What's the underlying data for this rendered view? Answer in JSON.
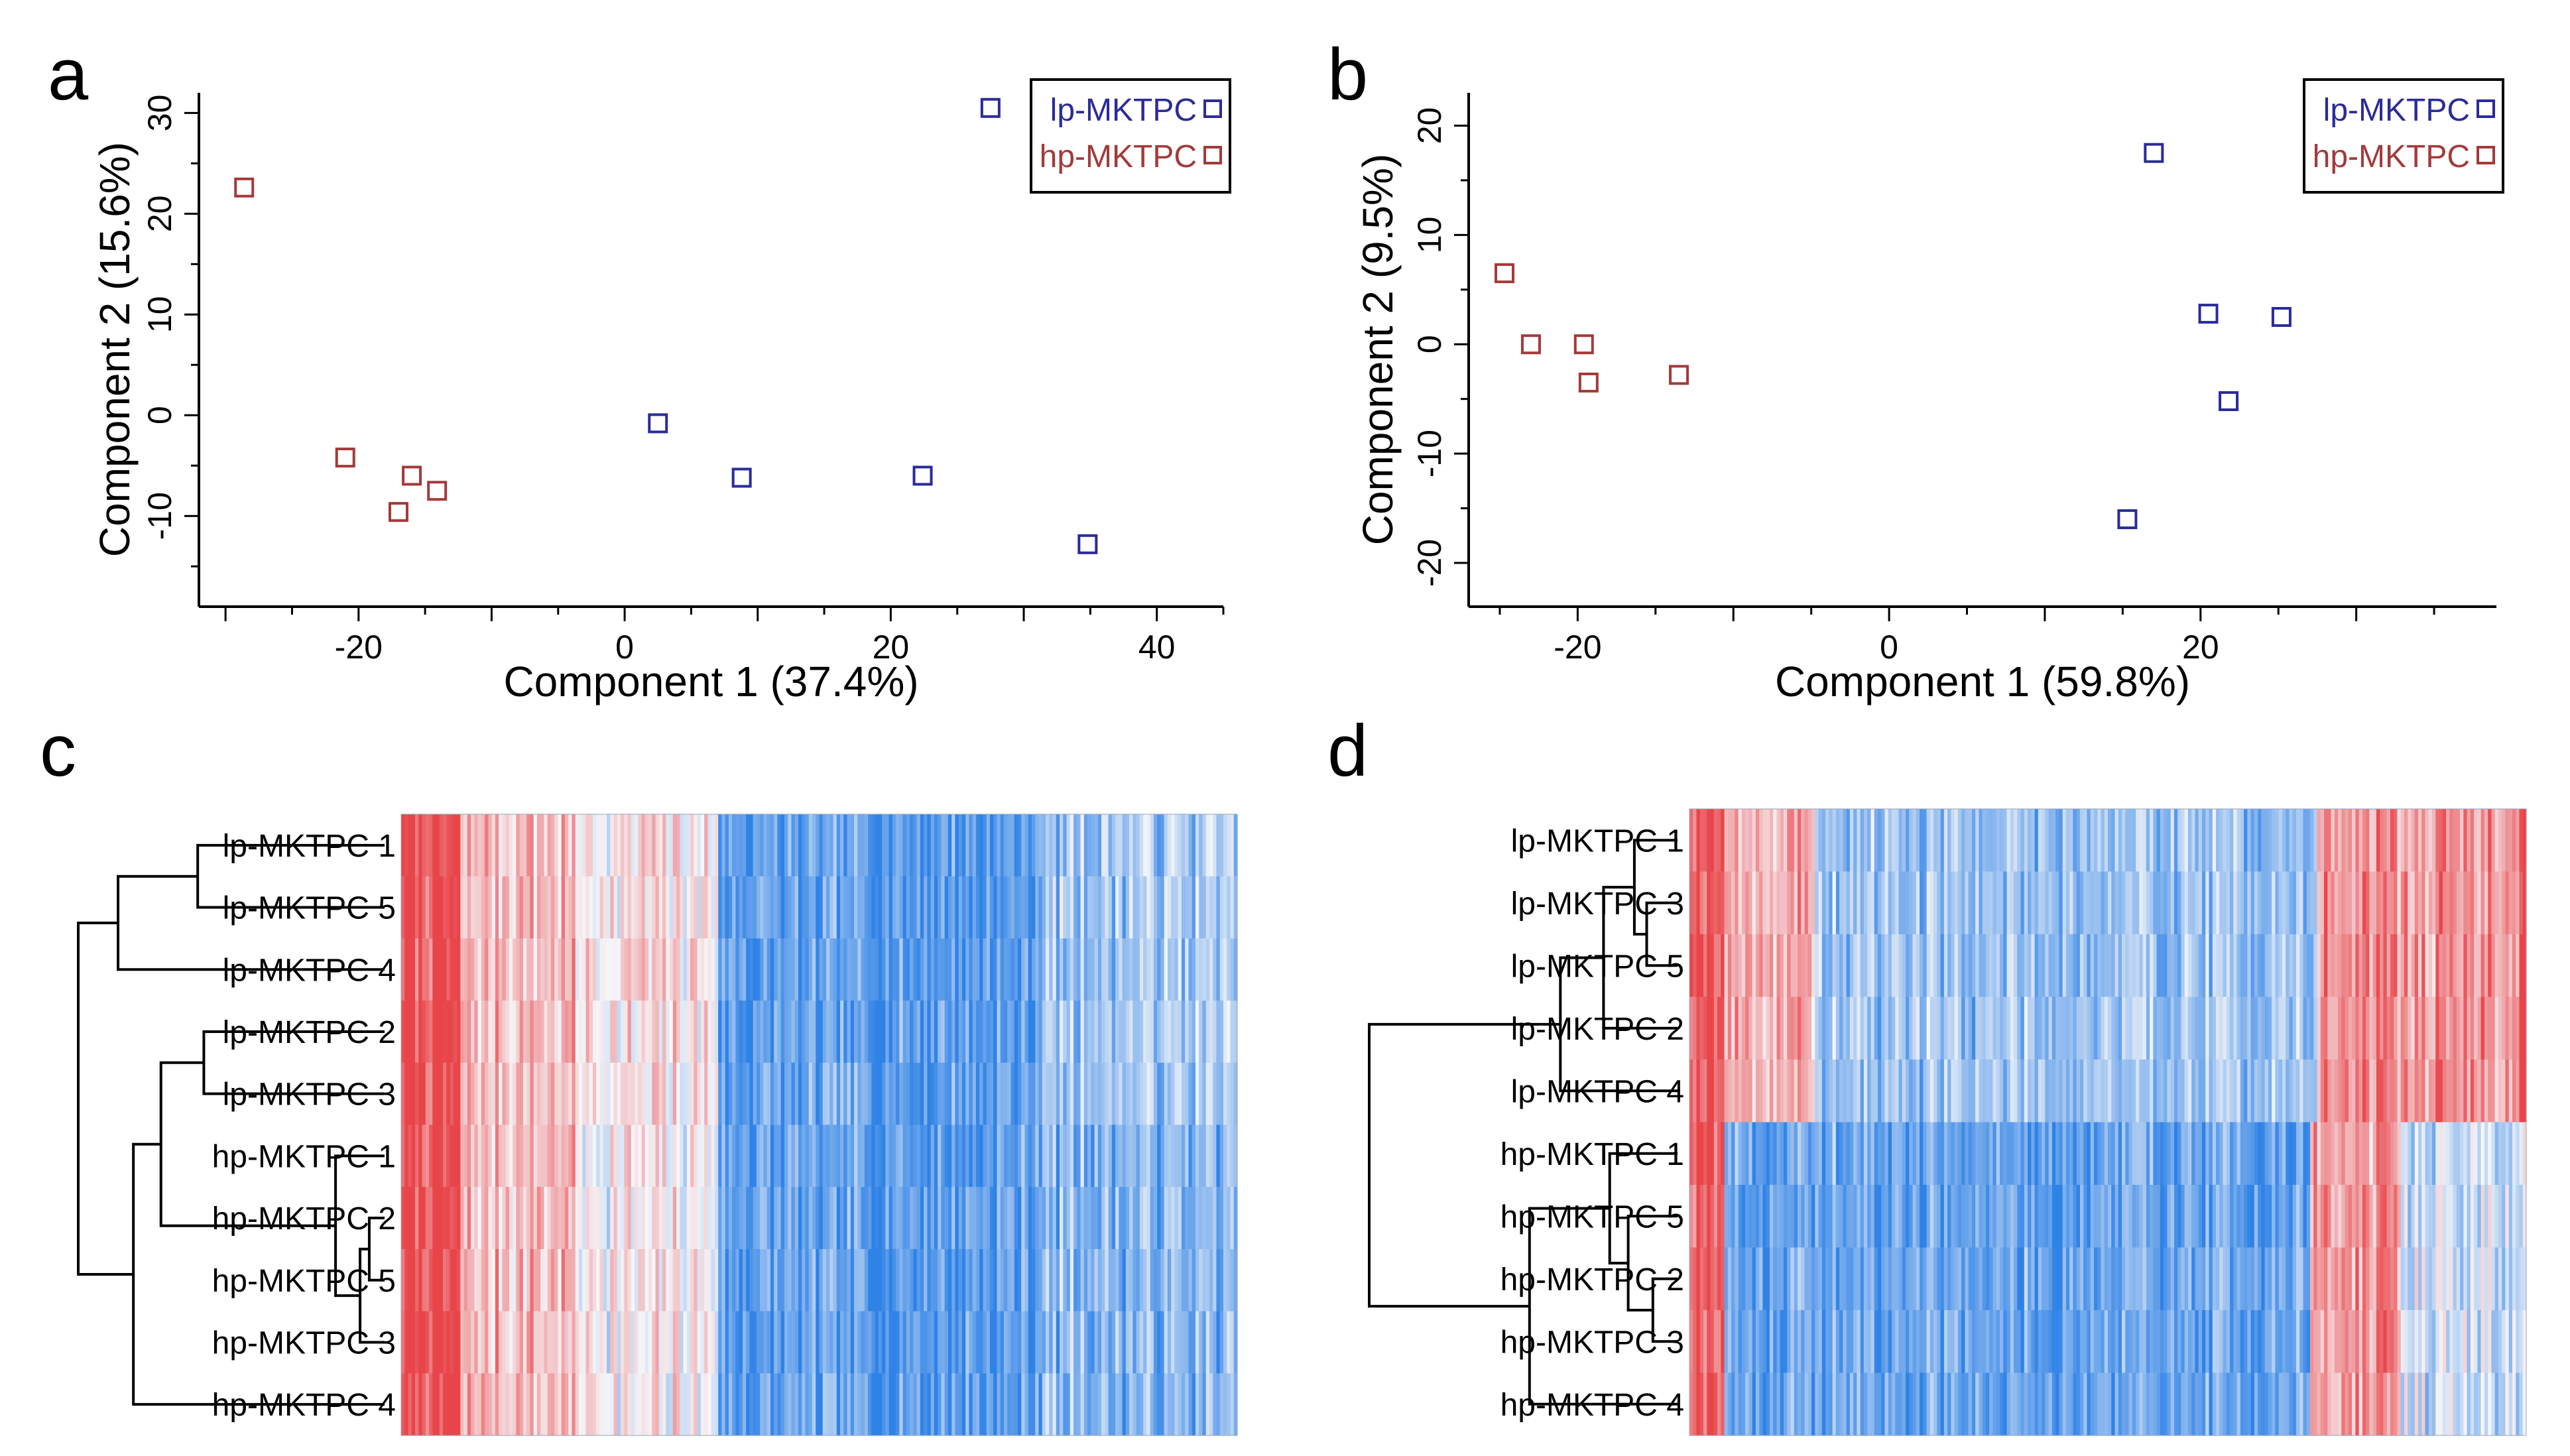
{
  "colors": {
    "lp": "#2b2b9a",
    "hp": "#a33a3a",
    "heat_red": "#e8454a",
    "heat_white": "#f6f6f8",
    "heat_blue": "#2f82e6"
  },
  "chart_data": [
    {
      "panel": "a",
      "type": "scatter",
      "xlabel": "Component 1 (37.4%)",
      "ylabel": "Component 2 (15.6%)",
      "xlim": [
        -32,
        45
      ],
      "ylim": [
        -19,
        32
      ],
      "xticks": [
        -20,
        0,
        20,
        40
      ],
      "yticks": [
        -10,
        0,
        10,
        20,
        30
      ],
      "series": [
        {
          "name": "lp-MKTPC",
          "color_key": "lp",
          "points": [
            [
              27.5,
              30.5
            ],
            [
              2.5,
              -0.8
            ],
            [
              8.8,
              -6.2
            ],
            [
              22.4,
              -6.0
            ],
            [
              34.8,
              -12.8
            ]
          ]
        },
        {
          "name": "hp-MKTPC",
          "color_key": "hp",
          "points": [
            [
              -28.6,
              22.6
            ],
            [
              -21,
              -4.2
            ],
            [
              -16,
              -6
            ],
            [
              -17,
              -9.6
            ],
            [
              -14.1,
              -7.5
            ]
          ]
        }
      ],
      "legend": [
        "lp-MKTPC",
        "hp-MKTPC"
      ]
    },
    {
      "panel": "b",
      "type": "scatter",
      "xlabel": "Component 1 (59.8%)",
      "ylabel": "Component 2 (9.5%)",
      "xlim": [
        -27,
        39
      ],
      "ylim": [
        -24,
        23
      ],
      "xticks": [
        -20,
        0,
        20
      ],
      "yticks": [
        -20,
        -10,
        0,
        10,
        20
      ],
      "series": [
        {
          "name": "lp-MKTPC",
          "color_key": "lp",
          "points": [
            [
              17,
              17.5
            ],
            [
              20.5,
              2.8
            ],
            [
              25.2,
              2.5
            ],
            [
              21.8,
              -5.2
            ],
            [
              15.3,
              -16
            ]
          ]
        },
        {
          "name": "hp-MKTPC",
          "color_key": "hp",
          "points": [
            [
              -24.7,
              6.5
            ],
            [
              -23,
              0
            ],
            [
              -19.6,
              0
            ],
            [
              -19.3,
              -3.5
            ],
            [
              -13.5,
              -2.8
            ]
          ]
        }
      ],
      "legend": [
        "lp-MKTPC",
        "hp-MKTPC"
      ]
    },
    {
      "panel": "c",
      "type": "heatmap",
      "rows": [
        "lp-MKTPC 1",
        "lp-MKTPC 5",
        "lp-MKTPC 4",
        "lp-MKTPC 2",
        "lp-MKTPC 3",
        "hp-MKTPC 1",
        "hp-MKTPC 2",
        "hp-MKTPC 5",
        "hp-MKTPC 3",
        "hp-MKTPC 4"
      ],
      "dendrogram_heights": {
        "lp-MKTPC 1|lp-MKTPC 5": 0.61,
        "(lp-MKTPC 1,lp-MKTPC 5)|lp-MKTPC 4": 0.87,
        "lp-MKTPC 2|lp-MKTPC 3": 0.59,
        "hp-MKTPC 2|hp-MKTPC 5": 0.05,
        "(hp-MKTPC 2,hp-MKTPC 5)|hp-MKTPC 3": 0.08,
        "hp-MKTPC 1|(hp-MKTPC 2,hp-MKTPC 5,hp-MKTPC 3)": 0.16,
        "(lp-MKTPC 2,lp-MKTPC 3)|(hp-MKTPC 1,hp-MKTPC 2,hp-MKTPC 5,hp-MKTPC 3)": 0.73,
        "(lp-MKTPC 2,lp-MKTPC 3,hp-MKTPC 1,hp-MKTPC 2,hp-MKTPC 5,hp-MKTPC 3)|hp-MKTPC 4": 0.82,
        "root": 1.0
      },
      "column_profile": [
        {
          "from": 0.0,
          "to": 0.07,
          "value": 0.95
        },
        {
          "from": 0.07,
          "to": 0.21,
          "value": 0.35
        },
        {
          "from": 0.21,
          "to": 0.38,
          "value": 0.05
        },
        {
          "from": 0.38,
          "to": 0.76,
          "value": -0.75
        },
        {
          "from": 0.76,
          "to": 1.0,
          "value": -0.4
        }
      ],
      "color_scale": [
        "blue",
        "white",
        "red"
      ]
    },
    {
      "panel": "d",
      "type": "heatmap",
      "rows": [
        "lp-MKTPC 1",
        "lp-MKTPC 3",
        "lp-MKTPC 5",
        "lp-MKTPC 2",
        "lp-MKTPC 4",
        "hp-MKTPC 1",
        "hp-MKTPC 5",
        "hp-MKTPC 2",
        "hp-MKTPC 3",
        "hp-MKTPC 4"
      ],
      "dendrogram_heights": {
        "lp-MKTPC 3|lp-MKTPC 5": 0.1,
        "lp-MKTPC 1|(lp-MKTPC 3,lp-MKTPC 5)": 0.14,
        "(lp-MKTPC 1,lp-MKTPC 3,lp-MKTPC 5)|lp-MKTPC 2": 0.24,
        "(lp-MKTPC 1,lp-MKTPC 3,lp-MKTPC 5,lp-MKTPC 2)|lp-MKTPC 4": 0.38,
        "hp-MKTPC 2|hp-MKTPC 3": 0.08,
        "hp-MKTPC 5|(hp-MKTPC 2,hp-MKTPC 3)": 0.16,
        "hp-MKTPC 1|(hp-MKTPC 5,hp-MKTPC 2,hp-MKTPC 3)": 0.22,
        "(hp-MKTPC 1,hp-MKTPC 5,hp-MKTPC 2,hp-MKTPC 3)|hp-MKTPC 4": 0.48,
        "root": 1.0
      },
      "column_profile_lp": [
        {
          "from": 0.0,
          "to": 0.04,
          "value": 0.95
        },
        {
          "from": 0.04,
          "to": 0.15,
          "value": 0.4
        },
        {
          "from": 0.15,
          "to": 0.75,
          "value": -0.45
        },
        {
          "from": 0.75,
          "to": 0.99,
          "value": 0.55
        },
        {
          "from": 0.99,
          "to": 1.0,
          "value": 0.95
        }
      ],
      "column_profile_hp": [
        {
          "from": 0.0,
          "to": 0.04,
          "value": 0.95
        },
        {
          "from": 0.04,
          "to": 0.74,
          "value": -0.7
        },
        {
          "from": 0.74,
          "to": 0.85,
          "value": 0.5
        },
        {
          "from": 0.85,
          "to": 1.0,
          "value": -0.2
        }
      ],
      "color_scale": [
        "blue",
        "white",
        "red"
      ]
    }
  ],
  "panels": {
    "a": {
      "letter": "a"
    },
    "b": {
      "letter": "b"
    },
    "c": {
      "letter": "c"
    },
    "d": {
      "letter": "d"
    }
  }
}
